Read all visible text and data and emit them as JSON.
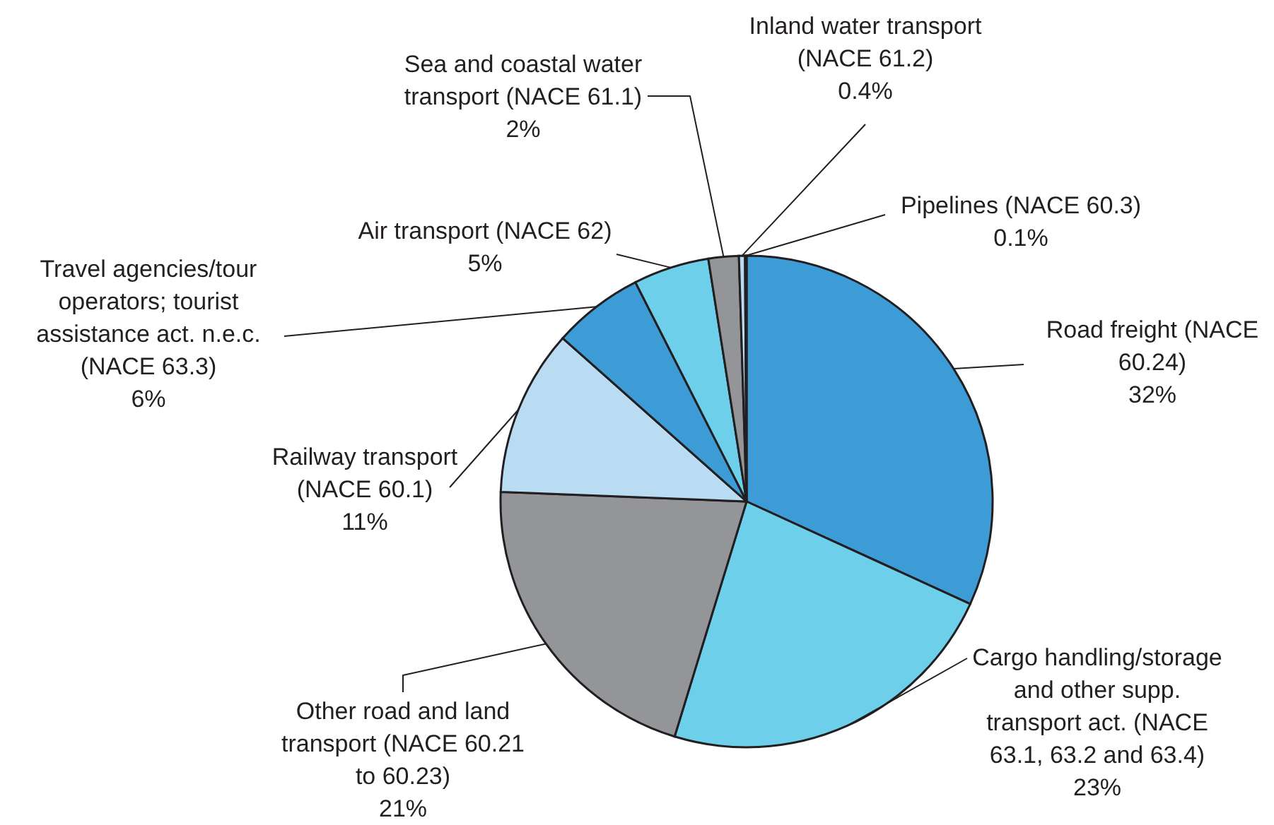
{
  "chart_data": {
    "type": "pie",
    "categories": [
      "Road freight (NACE 60.24)",
      "Cargo handling/storage and other supp. transport act. (NACE 63.1, 63.2 and 63.4)",
      "Other road and land transport (NACE 60.21 to 60.23)",
      "Railway transport (NACE 60.1)",
      "Travel agencies/tour operators; tourist assistance act. n.e.c. (NACE 63.3)",
      "Air transport (NACE 62)",
      "Sea and coastal water transport (NACE 61.1)",
      "Inland water transport (NACE 61.2)",
      "Pipelines (NACE 60.3)"
    ],
    "values": [
      32,
      23,
      21,
      11,
      6,
      5,
      2,
      0.4,
      0.1
    ],
    "value_labels": [
      "32%",
      "23%",
      "21%",
      "11%",
      "6%",
      "5%",
      "2%",
      "0.4%",
      "0.1%"
    ],
    "colors": [
      "#3d9bd6",
      "#6ecfea",
      "#939598",
      "#b9dcf3",
      "#3d9bd6",
      "#6ecfea",
      "#939598",
      "#b9dcf3",
      "#ffffff"
    ]
  }
}
